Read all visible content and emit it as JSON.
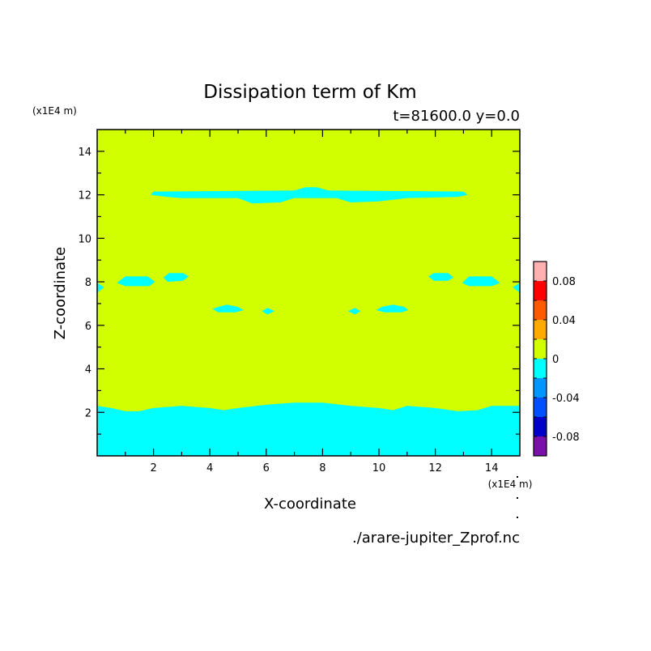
{
  "chart_data": {
    "type": "heatmap",
    "title": "Dissipation term of Km",
    "subtitle": "t=81600.0 y=0.0",
    "xlabel": "X-coordinate",
    "ylabel": "Z-coordinate",
    "x_unit": "(x1E4 m)",
    "y_unit": "(x1E4 m)",
    "source_file": "./arare-jupiter_Zprof.nc",
    "xlim": [
      0,
      15
    ],
    "ylim": [
      0,
      15
    ],
    "x_ticks": [
      2,
      4,
      6,
      8,
      10,
      12,
      14
    ],
    "y_ticks": [
      2,
      4,
      6,
      8,
      10,
      12,
      14
    ],
    "x_tick_labels": [
      "2",
      "4",
      "6",
      "8",
      "10",
      "12",
      "14"
    ],
    "y_tick_labels": [
      "2",
      "4",
      "6",
      "8",
      "10",
      "12",
      "14"
    ],
    "background_level": "0 to 0.02",
    "regions": [
      {
        "name": "bottom-layer",
        "level": "-0.02 to 0",
        "polygon": [
          [
            0,
            0
          ],
          [
            15,
            0
          ],
          [
            15,
            2.3
          ],
          [
            14,
            2.3
          ],
          [
            13.5,
            2.1
          ],
          [
            12.8,
            2.05
          ],
          [
            12,
            2.2
          ],
          [
            11,
            2.3
          ],
          [
            10.5,
            2.1
          ],
          [
            10,
            2.2
          ],
          [
            9,
            2.3
          ],
          [
            8,
            2.45
          ],
          [
            7,
            2.45
          ],
          [
            6,
            2.35
          ],
          [
            5,
            2.2
          ],
          [
            4.5,
            2.1
          ],
          [
            4,
            2.2
          ],
          [
            3,
            2.3
          ],
          [
            2,
            2.2
          ],
          [
            1.5,
            2.05
          ],
          [
            1,
            2.05
          ],
          [
            0.5,
            2.2
          ],
          [
            0,
            2.3
          ]
        ]
      },
      {
        "name": "upper-band",
        "level": "-0.02 to 0",
        "polygon": [
          [
            1.9,
            12
          ],
          [
            2,
            12.15
          ],
          [
            7,
            12.2
          ],
          [
            7.4,
            12.35
          ],
          [
            7.8,
            12.35
          ],
          [
            8.2,
            12.2
          ],
          [
            13,
            12.15
          ],
          [
            13.15,
            12
          ],
          [
            12.8,
            11.9
          ],
          [
            11,
            11.85
          ],
          [
            10,
            11.7
          ],
          [
            9,
            11.65
          ],
          [
            8.5,
            11.85
          ],
          [
            7,
            11.85
          ],
          [
            6.5,
            11.65
          ],
          [
            5.5,
            11.6
          ],
          [
            5,
            11.85
          ],
          [
            3,
            11.85
          ],
          [
            2.5,
            11.9
          ]
        ]
      },
      {
        "name": "blob-left-1",
        "level": "-0.02 to 0",
        "polygon": [
          [
            0.7,
            7.95
          ],
          [
            1,
            8.25
          ],
          [
            1.8,
            8.25
          ],
          [
            2.05,
            8
          ],
          [
            1.85,
            7.8
          ],
          [
            1,
            7.8
          ]
        ]
      },
      {
        "name": "blob-left-2",
        "level": "-0.02 to 0",
        "polygon": [
          [
            2.35,
            8.2
          ],
          [
            2.55,
            8.4
          ],
          [
            3.05,
            8.4
          ],
          [
            3.25,
            8.25
          ],
          [
            3.05,
            8.05
          ],
          [
            2.5,
            8
          ]
        ]
      },
      {
        "name": "blob-right-1",
        "level": "-0.02 to 0",
        "polygon": [
          [
            11.75,
            8.25
          ],
          [
            11.95,
            8.4
          ],
          [
            12.45,
            8.4
          ],
          [
            12.65,
            8.2
          ],
          [
            12.45,
            8.05
          ],
          [
            11.95,
            8.05
          ]
        ]
      },
      {
        "name": "blob-right-2",
        "level": "-0.02 to 0",
        "polygon": [
          [
            12.95,
            7.95
          ],
          [
            13.2,
            8.25
          ],
          [
            14,
            8.25
          ],
          [
            14.3,
            7.95
          ],
          [
            14,
            7.8
          ],
          [
            13.2,
            7.8
          ]
        ]
      },
      {
        "name": "edge-left",
        "level": "-0.02 to 0",
        "polygon": [
          [
            0,
            7.95
          ],
          [
            0.25,
            7.75
          ],
          [
            0,
            7.5
          ]
        ]
      },
      {
        "name": "edge-right",
        "level": "-0.02 to 0",
        "polygon": [
          [
            15,
            7.95
          ],
          [
            14.75,
            7.75
          ],
          [
            15,
            7.5
          ]
        ]
      },
      {
        "name": "blob-mid-left",
        "level": "-0.02 to 0",
        "polygon": [
          [
            4.1,
            6.75
          ],
          [
            4.3,
            6.85
          ],
          [
            4.6,
            6.95
          ],
          [
            5,
            6.85
          ],
          [
            5.2,
            6.7
          ],
          [
            4.9,
            6.6
          ],
          [
            4.3,
            6.6
          ]
        ]
      },
      {
        "name": "blob-mid-right",
        "level": "-0.02 to 0",
        "polygon": [
          [
            9.9,
            6.7
          ],
          [
            10.1,
            6.85
          ],
          [
            10.5,
            6.95
          ],
          [
            10.9,
            6.85
          ],
          [
            11.05,
            6.7
          ],
          [
            10.8,
            6.6
          ],
          [
            10.2,
            6.6
          ]
        ]
      },
      {
        "name": "dot-left",
        "level": "-0.02 to 0",
        "polygon": [
          [
            5.85,
            6.65
          ],
          [
            6.05,
            6.8
          ],
          [
            6.3,
            6.65
          ],
          [
            6.05,
            6.5
          ]
        ]
      },
      {
        "name": "dot-right",
        "level": "-0.02 to 0",
        "polygon": [
          [
            8.9,
            6.65
          ],
          [
            9.15,
            6.8
          ],
          [
            9.35,
            6.65
          ],
          [
            9.15,
            6.5
          ]
        ]
      }
    ],
    "colorbar": {
      "levels": [
        -0.1,
        -0.08,
        -0.06,
        -0.04,
        -0.02,
        0,
        0.02,
        0.04,
        0.06,
        0.08,
        0.1
      ],
      "colors": [
        "#7a10aa",
        "#0000c8",
        "#0050ff",
        "#0096ff",
        "#00ffff",
        "#d2ff00",
        "#ffaa00",
        "#ff5a00",
        "#ff0000",
        "#ffb0b0"
      ],
      "tick_values": [
        -0.08,
        -0.04,
        0,
        0.04,
        0.08
      ],
      "tick_labels": [
        "-0.08",
        "-0.04",
        "0",
        "0.04",
        "0.08"
      ]
    },
    "grid": false,
    "legend_placement": "right"
  }
}
